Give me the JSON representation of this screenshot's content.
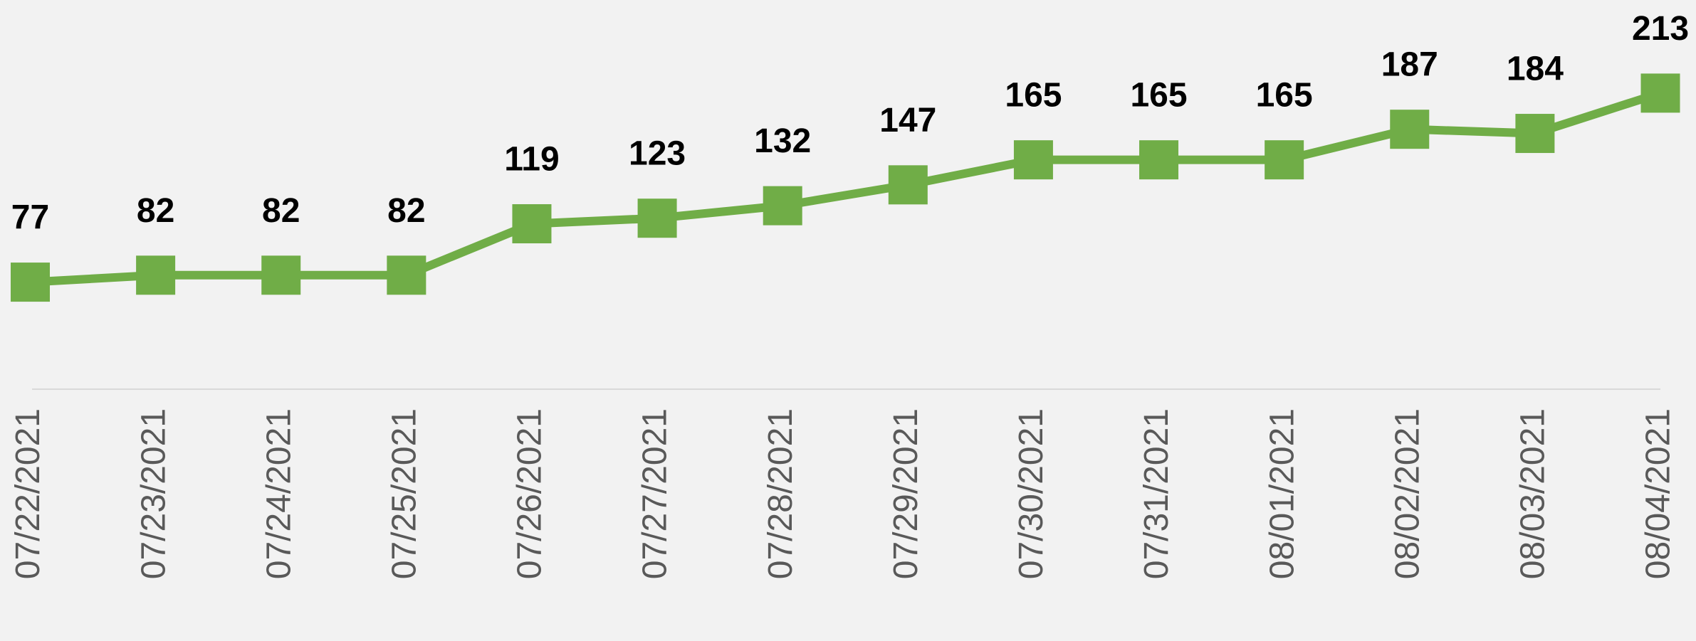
{
  "chart_data": {
    "type": "line",
    "categories": [
      "07/22/2021",
      "07/23/2021",
      "07/24/2021",
      "07/25/2021",
      "07/26/2021",
      "07/27/2021",
      "07/28/2021",
      "07/29/2021",
      "07/30/2021",
      "07/31/2021",
      "08/01/2021",
      "08/02/2021",
      "08/03/2021",
      "08/04/2021"
    ],
    "values": [
      77,
      82,
      82,
      82,
      119,
      123,
      132,
      147,
      165,
      165,
      165,
      187,
      184,
      213
    ],
    "color": "#70ad47",
    "ylim": [
      0,
      280
    ]
  }
}
